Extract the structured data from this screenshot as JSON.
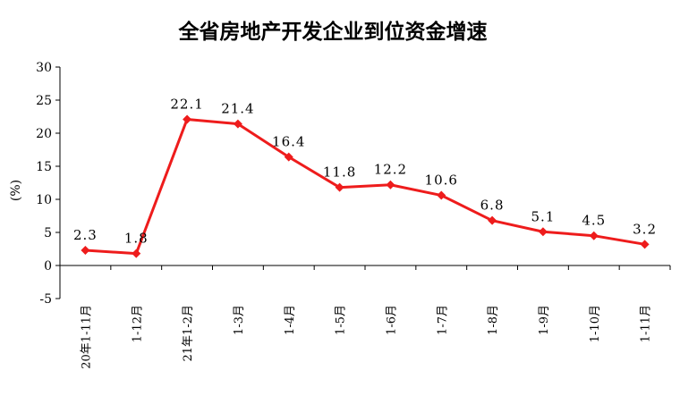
{
  "chart_data": {
    "type": "line",
    "title": "全省房地产开发企业到位资金增速",
    "ylabel": "(%)",
    "xlabel": "",
    "ylim": [
      -5,
      30
    ],
    "yticks": [
      -5,
      0,
      5,
      10,
      15,
      20,
      25,
      30
    ],
    "grid": false,
    "legend": "none",
    "categories": [
      "20年1-11月",
      "1-12月",
      "21年1-2月",
      "1-3月",
      "1-4月",
      "1-5月",
      "1-6月",
      "1-7月",
      "1-8月",
      "1-9月",
      "1-10月",
      "1-11月"
    ],
    "series": [
      {
        "values": [
          2.3,
          1.8,
          22.1,
          21.4,
          16.4,
          11.8,
          12.2,
          10.6,
          6.8,
          5.1,
          4.5,
          3.2
        ],
        "labels": [
          "2.3",
          "1.8",
          "22.1",
          "21.4",
          "16.4",
          "11.8",
          "12.2",
          "10.6",
          "6.8",
          "5.1",
          "4.5",
          "3.2"
        ],
        "color": "#ee1c1c",
        "marker": "diamond"
      }
    ]
  }
}
